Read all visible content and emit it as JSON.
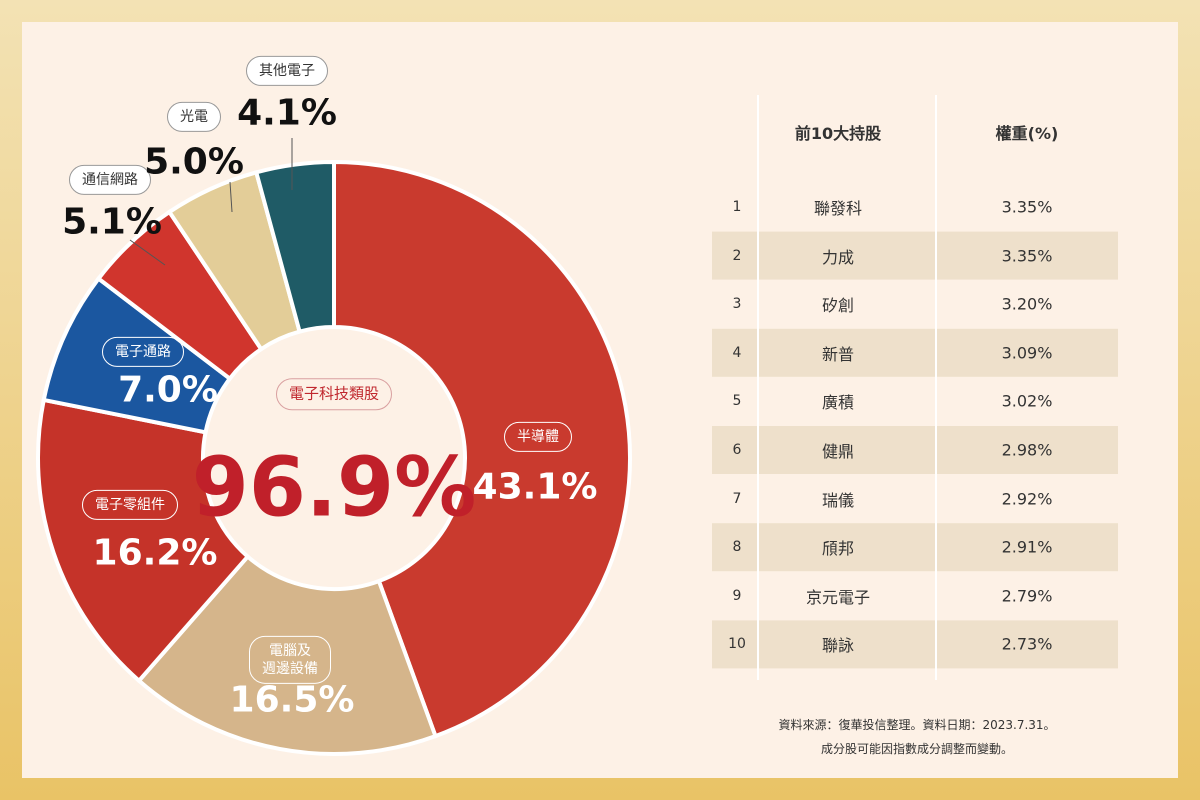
{
  "chart_data": {
    "type": "donut",
    "categories": [
      "半導體",
      "電腦及\n週邊設備",
      "電子零組件",
      "電子通路",
      "通信網路",
      "光電",
      "其他電子"
    ],
    "values": [
      43.1,
      16.5,
      16.2,
      7.0,
      5.1,
      5.0,
      4.1
    ],
    "value_labels": [
      "43.1%",
      "16.5%",
      "16.2%",
      "7.0%",
      "5.1%",
      "5.0%",
      "4.1%"
    ],
    "colors": [
      "#c93a2e",
      "#d5b58b",
      "#c53329",
      "#1b57a0",
      "#d0352d",
      "#e3cd98",
      "#1f5b66"
    ],
    "center_label": "電子科技類股",
    "center_total": {
      "value": 96.9,
      "label": "96.9%"
    }
  },
  "table": {
    "header": [
      "前10大持股",
      "權重(%)"
    ],
    "rows": [
      [
        "1",
        "聯發科",
        "3.35%"
      ],
      [
        "2",
        "力成",
        "3.35%"
      ],
      [
        "3",
        "矽創",
        "3.20%"
      ],
      [
        "4",
        "新普",
        "3.09%"
      ],
      [
        "5",
        "廣積",
        "3.02%"
      ],
      [
        "6",
        "健鼎",
        "2.98%"
      ],
      [
        "7",
        "瑞儀",
        "2.92%"
      ],
      [
        "8",
        "頎邦",
        "2.91%"
      ],
      [
        "9",
        "京元電子",
        "2.79%"
      ],
      [
        "10",
        "聯詠",
        "2.73%"
      ]
    ]
  },
  "footnotes": [
    "資料來源：復華投信整理。資料日期：2023.7.31。",
    "成分股可能因指數成分調整而變動。"
  ]
}
